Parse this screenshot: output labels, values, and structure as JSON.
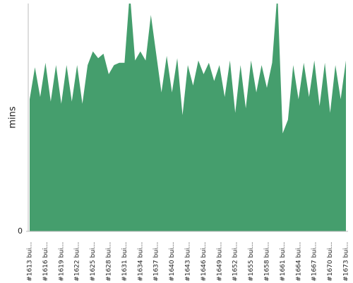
{
  "chart_data": {
    "type": "area",
    "ylabel": "mins",
    "color": "#459e6d",
    "categories": [
      "#1613 bui...",
      null,
      null,
      "#1616 bui...",
      null,
      null,
      "#1619 bui...",
      null,
      null,
      "#1622 bui...",
      null,
      null,
      "#1625 bui...",
      null,
      null,
      "#1628 bui...",
      null,
      null,
      "#1631 bui...",
      null,
      null,
      "#1634 bui...",
      null,
      null,
      "#1637 bui...",
      null,
      null,
      "#1640 bui...",
      null,
      null,
      "#1643 bui...",
      null,
      null,
      "#1646 bui...",
      null,
      null,
      "#1649 bui...",
      null,
      null,
      "#1652 bui...",
      null,
      null,
      "#1655 bui...",
      null,
      null,
      "#1658 bui...",
      null,
      null,
      "#1661 bui...",
      null,
      null,
      "#1664 bui...",
      null,
      null,
      "#1667 bui...",
      null,
      null,
      "#1670 bui...",
      null,
      null,
      "#1673 bui..."
    ],
    "values": [
      5.8,
      7.2,
      5.9,
      7.4,
      5.7,
      7.3,
      5.6,
      7.3,
      5.7,
      7.3,
      5.6,
      7.3,
      7.9,
      7.6,
      7.8,
      6.9,
      7.3,
      7.4,
      7.4,
      10.5,
      7.5,
      7.9,
      7.5,
      9.5,
      7.8,
      6.1,
      7.7,
      6.1,
      7.6,
      5.1,
      7.3,
      6.4,
      7.5,
      6.9,
      7.4,
      6.6,
      7.3,
      5.9,
      7.5,
      5.2,
      7.3,
      5.4,
      7.5,
      6.1,
      7.3,
      6.3,
      7.4,
      10.5,
      4.3,
      4.9,
      7.3,
      5.8,
      7.4,
      5.9,
      7.5,
      5.5,
      7.4,
      5.2,
      7.3,
      5.8,
      7.5
    ],
    "ylim": [
      0,
      10
    ],
    "yticks": [
      0
    ]
  }
}
